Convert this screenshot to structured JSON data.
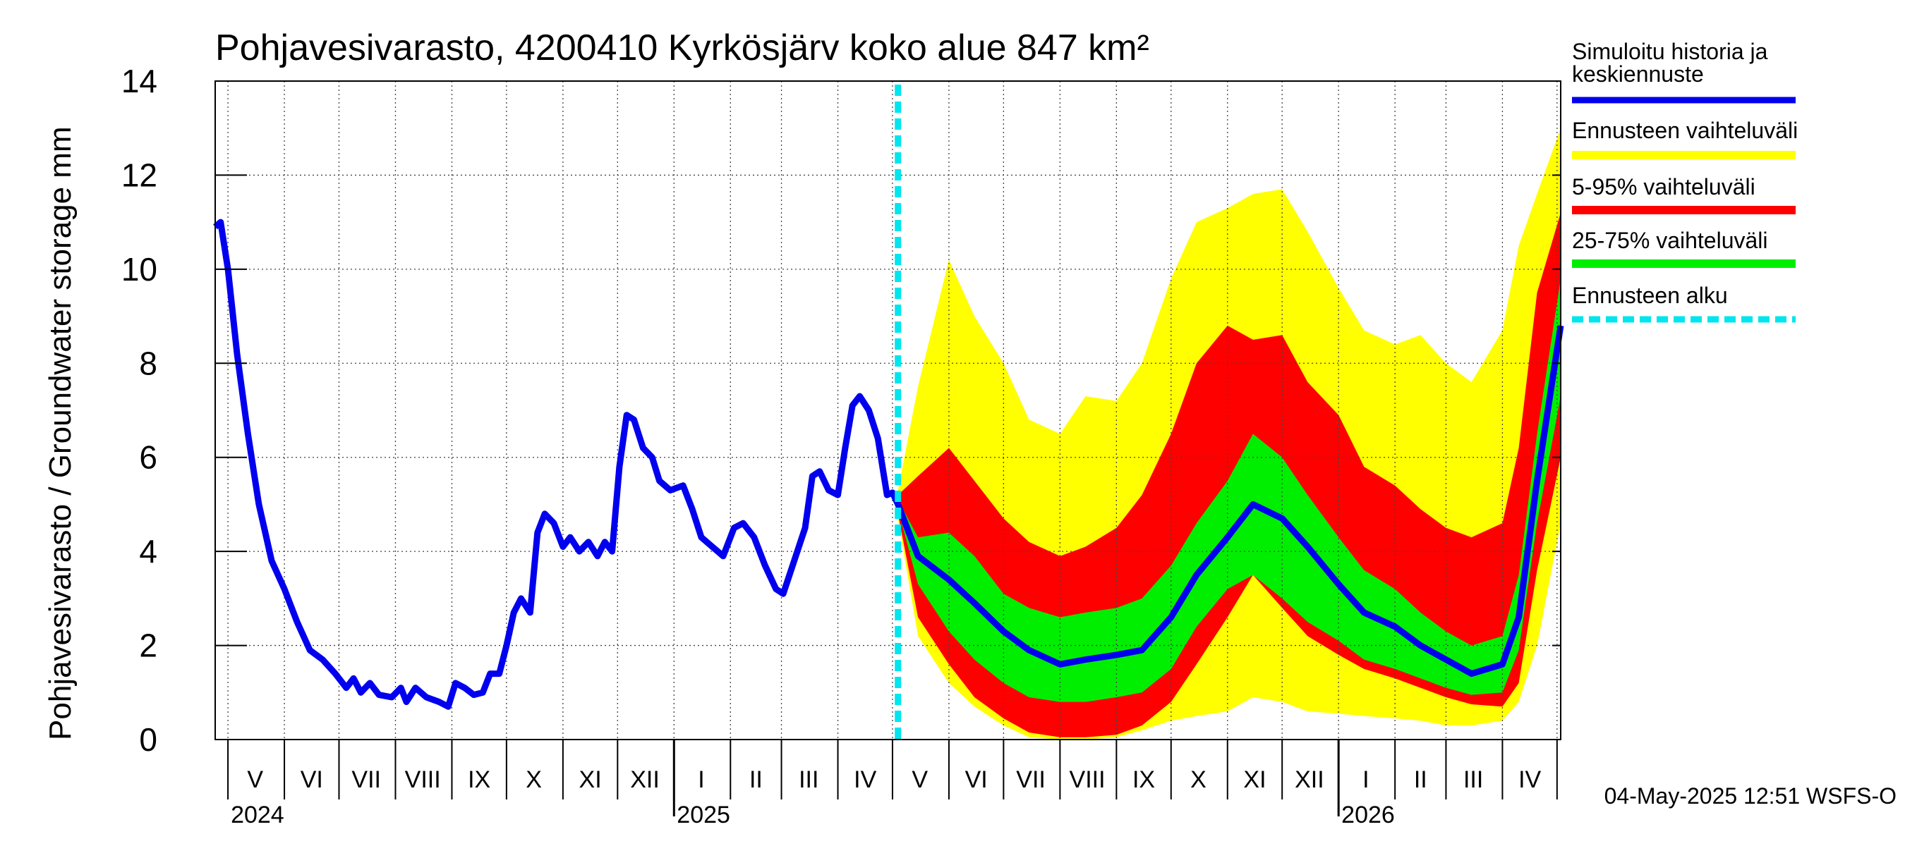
{
  "chart_data": {
    "type": "area",
    "title": "Pohjavesivarasto, 4200410 Kyrkösjärv koko alue 847 km²",
    "ylabel": "Pohjavesivarasto / Groundwater storage   mm",
    "ylim": [
      0,
      14
    ],
    "yticks": [
      0,
      2,
      4,
      6,
      8,
      10,
      12,
      14
    ],
    "xlim": [
      "2024-04-24",
      "2026-05-03"
    ],
    "month_labels": [
      "V",
      "VI",
      "VII",
      "VIII",
      "IX",
      "X",
      "XI",
      "XII",
      "I",
      "II",
      "III",
      "IV",
      "V",
      "VI",
      "VII",
      "VIII",
      "IX",
      "X",
      "XI",
      "XII",
      "I",
      "II",
      "III",
      "IV"
    ],
    "year_labels": [
      {
        "label": "2024",
        "date": "2024-05-01"
      },
      {
        "label": "2025",
        "date": "2025-01-01"
      },
      {
        "label": "2026",
        "date": "2026-01-01"
      }
    ],
    "forecast_start": "2025-05-04",
    "grid": true,
    "legend_position": "right",
    "legend": [
      {
        "label": "Simuloitu historia ja keskiennuste",
        "color": "#0000ff",
        "style": "solid"
      },
      {
        "label": "Ennusteen vaihteluväli",
        "color": "#ffff00",
        "style": "solid"
      },
      {
        "label": "5-95% vaihteluväli",
        "color": "#ff0000",
        "style": "solid"
      },
      {
        "label": "25-75% vaihteluväli",
        "color": "#00ee00",
        "style": "solid"
      },
      {
        "label": "Ennusteen alku",
        "color": "#00e5ee",
        "style": "dashed"
      }
    ],
    "history": [
      [
        "2024-04-24",
        10.9
      ],
      [
        "2024-04-27",
        11.0
      ],
      [
        "2024-05-01",
        10.0
      ],
      [
        "2024-05-06",
        8.2
      ],
      [
        "2024-05-12",
        6.5
      ],
      [
        "2024-05-18",
        5.0
      ],
      [
        "2024-05-25",
        3.8
      ],
      [
        "2024-06-01",
        3.2
      ],
      [
        "2024-06-08",
        2.5
      ],
      [
        "2024-06-15",
        1.9
      ],
      [
        "2024-06-22",
        1.7
      ],
      [
        "2024-06-29",
        1.4
      ],
      [
        "2024-07-05",
        1.1
      ],
      [
        "2024-07-09",
        1.3
      ],
      [
        "2024-07-13",
        1.0
      ],
      [
        "2024-07-18",
        1.2
      ],
      [
        "2024-07-23",
        0.95
      ],
      [
        "2024-07-30",
        0.9
      ],
      [
        "2024-08-04",
        1.1
      ],
      [
        "2024-08-07",
        0.8
      ],
      [
        "2024-08-12",
        1.1
      ],
      [
        "2024-08-18",
        0.9
      ],
      [
        "2024-08-25",
        0.8
      ],
      [
        "2024-08-30",
        0.7
      ],
      [
        "2024-09-03",
        1.2
      ],
      [
        "2024-09-08",
        1.1
      ],
      [
        "2024-09-13",
        0.95
      ],
      [
        "2024-09-18",
        1.0
      ],
      [
        "2024-09-22",
        1.4
      ],
      [
        "2024-09-27",
        1.4
      ],
      [
        "2024-10-01",
        2.0
      ],
      [
        "2024-10-05",
        2.7
      ],
      [
        "2024-10-09",
        3.0
      ],
      [
        "2024-10-14",
        2.7
      ],
      [
        "2024-10-18",
        4.4
      ],
      [
        "2024-10-22",
        4.8
      ],
      [
        "2024-10-27",
        4.6
      ],
      [
        "2024-11-01",
        4.1
      ],
      [
        "2024-11-05",
        4.3
      ],
      [
        "2024-11-10",
        4.0
      ],
      [
        "2024-11-15",
        4.2
      ],
      [
        "2024-11-20",
        3.9
      ],
      [
        "2024-11-24",
        4.2
      ],
      [
        "2024-11-28",
        4.0
      ],
      [
        "2024-12-02",
        5.8
      ],
      [
        "2024-12-06",
        6.9
      ],
      [
        "2024-12-10",
        6.8
      ],
      [
        "2024-12-15",
        6.2
      ],
      [
        "2024-12-20",
        6.0
      ],
      [
        "2024-12-24",
        5.5
      ],
      [
        "2024-12-30",
        5.3
      ],
      [
        "2025-01-06",
        5.4
      ],
      [
        "2025-01-11",
        4.9
      ],
      [
        "2025-01-16",
        4.3
      ],
      [
        "2025-01-22",
        4.1
      ],
      [
        "2025-01-28",
        3.9
      ],
      [
        "2025-02-03",
        4.5
      ],
      [
        "2025-02-08",
        4.6
      ],
      [
        "2025-02-14",
        4.3
      ],
      [
        "2025-02-20",
        3.7
      ],
      [
        "2025-02-26",
        3.2
      ],
      [
        "2025-03-02",
        3.1
      ],
      [
        "2025-03-08",
        3.8
      ],
      [
        "2025-03-14",
        4.5
      ],
      [
        "2025-03-18",
        5.6
      ],
      [
        "2025-03-22",
        5.7
      ],
      [
        "2025-03-27",
        5.3
      ],
      [
        "2025-04-01",
        5.2
      ],
      [
        "2025-04-05",
        6.2
      ],
      [
        "2025-04-09",
        7.1
      ],
      [
        "2025-04-13",
        7.3
      ],
      [
        "2025-04-18",
        7.0
      ],
      [
        "2025-04-23",
        6.4
      ],
      [
        "2025-04-28",
        5.2
      ],
      [
        "2025-05-01",
        5.25
      ],
      [
        "2025-05-04",
        5.0
      ]
    ],
    "forecast_dates": [
      "2025-05-04",
      "2025-05-15",
      "2025-06-01",
      "2025-06-15",
      "2025-07-01",
      "2025-07-15",
      "2025-08-01",
      "2025-08-15",
      "2025-09-01",
      "2025-09-15",
      "2025-10-01",
      "2025-10-15",
      "2025-11-01",
      "2025-11-15",
      "2025-12-01",
      "2025-12-15",
      "2026-01-01",
      "2026-01-15",
      "2026-02-01",
      "2026-02-15",
      "2026-03-01",
      "2026-03-15",
      "2026-04-01",
      "2026-04-10",
      "2026-04-20",
      "2026-05-03"
    ],
    "median": [
      5.0,
      3.9,
      3.4,
      2.9,
      2.3,
      1.9,
      1.6,
      1.7,
      1.8,
      1.9,
      2.6,
      3.5,
      4.3,
      5.0,
      4.7,
      4.1,
      3.3,
      2.7,
      2.4,
      2.0,
      1.7,
      1.4,
      1.6,
      2.6,
      5.5,
      8.8
    ],
    "p25": [
      4.9,
      3.3,
      2.3,
      1.7,
      1.2,
      0.9,
      0.8,
      0.8,
      0.9,
      1.0,
      1.5,
      2.4,
      3.2,
      3.5,
      3.0,
      2.5,
      2.1,
      1.7,
      1.5,
      1.3,
      1.1,
      0.95,
      1.0,
      1.9,
      4.6,
      7.3
    ],
    "p75": [
      5.1,
      4.3,
      4.4,
      3.9,
      3.1,
      2.8,
      2.6,
      2.7,
      2.8,
      3.0,
      3.7,
      4.6,
      5.5,
      6.5,
      6.0,
      5.2,
      4.3,
      3.6,
      3.2,
      2.7,
      2.3,
      2.0,
      2.2,
      3.5,
      6.5,
      9.8
    ],
    "p5": [
      4.8,
      2.6,
      1.6,
      0.9,
      0.45,
      0.15,
      0.05,
      0.05,
      0.1,
      0.3,
      0.8,
      1.6,
      2.6,
      3.5,
      2.8,
      2.2,
      1.8,
      1.5,
      1.3,
      1.1,
      0.9,
      0.75,
      0.7,
      1.2,
      3.6,
      6.0
    ],
    "p95": [
      5.2,
      5.6,
      6.2,
      5.5,
      4.7,
      4.2,
      3.9,
      4.1,
      4.5,
      5.2,
      6.5,
      8.0,
      8.8,
      8.5,
      8.6,
      7.6,
      6.9,
      5.8,
      5.4,
      4.9,
      4.5,
      4.3,
      4.6,
      6.2,
      9.5,
      11.2
    ],
    "min": [
      4.7,
      2.2,
      1.2,
      0.7,
      0.3,
      0.05,
      0.0,
      0.0,
      0.05,
      0.2,
      0.4,
      0.5,
      0.6,
      0.9,
      0.8,
      0.6,
      0.55,
      0.5,
      0.45,
      0.4,
      0.3,
      0.3,
      0.4,
      0.8,
      2.0,
      4.6
    ],
    "max": [
      5.3,
      7.5,
      10.2,
      9.0,
      8.0,
      6.8,
      6.5,
      7.3,
      7.2,
      8.0,
      9.8,
      11.0,
      11.3,
      11.6,
      11.7,
      10.8,
      9.6,
      8.7,
      8.4,
      8.6,
      8.0,
      7.6,
      8.7,
      10.5,
      11.6,
      13.0
    ]
  },
  "footer_timestamp": "04-May-2025 12:51 WSFS-O"
}
